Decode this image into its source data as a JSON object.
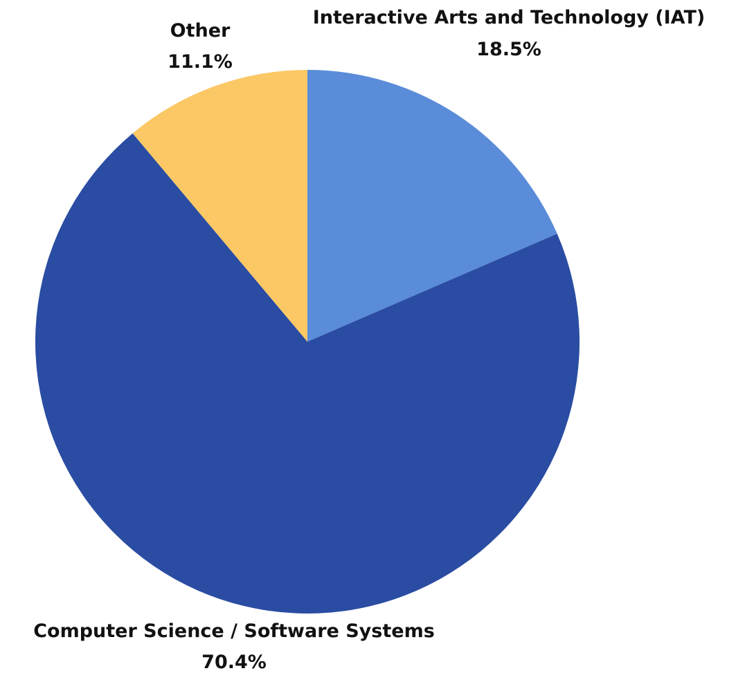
{
  "chart_data": {
    "type": "pie",
    "slices": [
      {
        "label": "Interactive Arts and Technology (IAT)",
        "value": 18.5,
        "value_label": "18.5%",
        "color": "#5a8cd9"
      },
      {
        "label": "Computer Science / Software Systems",
        "value": 70.4,
        "value_label": "70.4%",
        "color": "#2a4ca2"
      },
      {
        "label": "Other",
        "value": 11.1,
        "value_label": "11.1%",
        "color": "#fbc865"
      }
    ],
    "start_angle": "12 o'clock",
    "direction": "clockwise",
    "legend": "none"
  }
}
